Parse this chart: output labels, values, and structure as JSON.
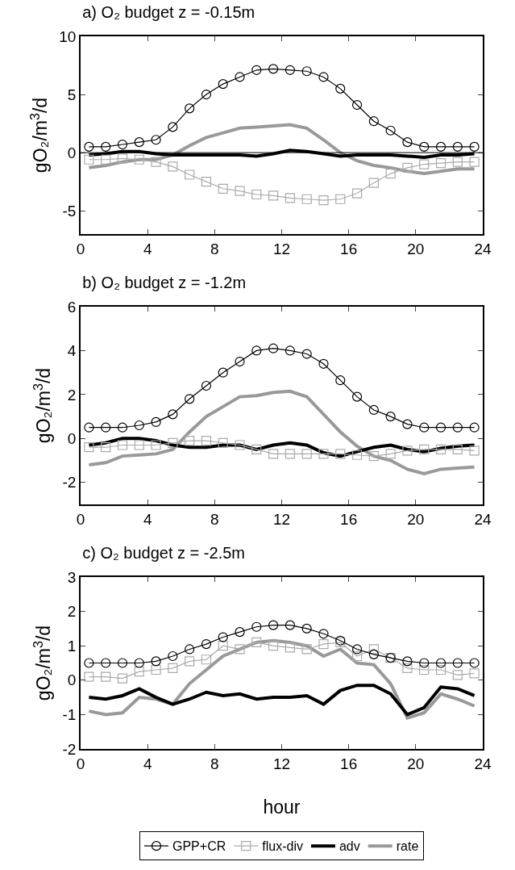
{
  "chart_data": [
    {
      "type": "line",
      "title": "a) O₂ budget z = -0.15m",
      "ylabel": "gO₂/m$^{3}$/d",
      "x": [
        0.5,
        1.5,
        2.5,
        3.5,
        4.5,
        5.5,
        6.5,
        7.5,
        8.5,
        9.5,
        10.5,
        11.5,
        12.5,
        13.5,
        14.5,
        15.5,
        16.5,
        17.5,
        18.5,
        19.5,
        20.5,
        21.5,
        22.5,
        23.5
      ],
      "xlim": [
        0,
        24
      ],
      "xticks": [
        0,
        4,
        8,
        12,
        16,
        20,
        24
      ],
      "ylim": [
        -7,
        10
      ],
      "yticks": [
        -5,
        0,
        5,
        10
      ],
      "grid": false,
      "legend": false,
      "ref_lines": [
        {
          "axis": "y",
          "value": 0,
          "color": "#000000"
        }
      ],
      "series": [
        {
          "color": "#000000",
          "marker": "circle",
          "values": [
            0.5,
            0.5,
            0.7,
            0.9,
            1.1,
            2.2,
            3.8,
            5.0,
            5.9,
            6.5,
            7.1,
            7.2,
            7.1,
            7.0,
            6.5,
            5.5,
            4.1,
            2.7,
            1.9,
            0.9,
            0.5,
            0.5,
            0.5,
            0.5
          ]
        },
        {
          "color": "#aaaaaa",
          "marker": "square",
          "values": [
            -0.6,
            -0.6,
            -0.5,
            -0.6,
            -0.8,
            -1.2,
            -1.9,
            -2.5,
            -3.1,
            -3.3,
            -3.6,
            -3.7,
            -3.9,
            -4.0,
            -4.1,
            -4.0,
            -3.5,
            -2.6,
            -1.8,
            -1.3,
            -1.0,
            -0.9,
            -0.8,
            -0.8
          ]
        },
        {
          "color": "#000000",
          "marker": "none",
          "values": [
            -0.2,
            -0.1,
            0.1,
            0.1,
            -0.1,
            -0.2,
            -0.2,
            -0.2,
            -0.2,
            -0.2,
            -0.3,
            -0.1,
            0.2,
            0.1,
            -0.1,
            -0.3,
            -0.2,
            -0.2,
            -0.2,
            -0.3,
            -0.4,
            -0.2,
            -0.2,
            -0.1
          ]
        },
        {
          "color": "#999999",
          "marker": "none",
          "values": [
            -1.3,
            -1.1,
            -0.8,
            -0.6,
            -0.6,
            -0.2,
            0.6,
            1.3,
            1.7,
            2.1,
            2.2,
            2.3,
            2.4,
            2.1,
            1.1,
            0.0,
            -0.7,
            -1.1,
            -1.3,
            -1.6,
            -1.8,
            -1.6,
            -1.4,
            -1.4
          ]
        }
      ]
    },
    {
      "type": "line",
      "title": "b) O₂ budget z = -1.2m",
      "ylabel": "gO₂/m$^{3}$/d",
      "x": [
        0.5,
        1.5,
        2.5,
        3.5,
        4.5,
        5.5,
        6.5,
        7.5,
        8.5,
        9.5,
        10.5,
        11.5,
        12.5,
        13.5,
        14.5,
        15.5,
        16.5,
        17.5,
        18.5,
        19.5,
        20.5,
        21.5,
        22.5,
        23.5
      ],
      "xlim": [
        0,
        24
      ],
      "xticks": [
        0,
        4,
        8,
        12,
        16,
        20,
        24
      ],
      "ylim": [
        -3,
        6
      ],
      "yticks": [
        -2,
        0,
        2,
        4,
        6
      ],
      "grid": false,
      "legend": false,
      "series": [
        {
          "color": "#000000",
          "marker": "circle",
          "values": [
            0.5,
            0.5,
            0.5,
            0.6,
            0.75,
            1.1,
            1.8,
            2.4,
            3.0,
            3.5,
            4.0,
            4.1,
            4.0,
            3.85,
            3.4,
            2.65,
            1.9,
            1.3,
            1.0,
            0.65,
            0.5,
            0.5,
            0.5,
            0.5
          ]
        },
        {
          "color": "#aaaaaa",
          "marker": "square",
          "values": [
            -0.4,
            -0.4,
            -0.3,
            -0.3,
            -0.3,
            -0.2,
            -0.1,
            -0.1,
            -0.2,
            -0.3,
            -0.5,
            -0.7,
            -0.7,
            -0.7,
            -0.7,
            -0.7,
            -0.75,
            -0.8,
            -0.7,
            -0.55,
            -0.5,
            -0.5,
            -0.5,
            -0.55
          ]
        },
        {
          "color": "#000000",
          "marker": "none",
          "values": [
            -0.3,
            -0.2,
            0.0,
            0.0,
            -0.1,
            -0.3,
            -0.4,
            -0.4,
            -0.3,
            -0.3,
            -0.5,
            -0.3,
            -0.2,
            -0.3,
            -0.65,
            -0.8,
            -0.6,
            -0.4,
            -0.3,
            -0.5,
            -0.6,
            -0.45,
            -0.35,
            -0.3
          ]
        },
        {
          "color": "#999999",
          "marker": "none",
          "values": [
            -1.2,
            -1.1,
            -0.8,
            -0.75,
            -0.7,
            -0.5,
            0.3,
            1.0,
            1.45,
            1.9,
            1.95,
            2.1,
            2.15,
            1.9,
            1.1,
            0.3,
            -0.35,
            -0.8,
            -1.0,
            -1.4,
            -1.6,
            -1.4,
            -1.35,
            -1.3
          ]
        }
      ]
    },
    {
      "type": "line",
      "title": "c) O₂ budget z = -2.5m",
      "ylabel": "gO₂/m$^{3}$/d",
      "xlabel": "hour",
      "x": [
        0.5,
        1.5,
        2.5,
        3.5,
        4.5,
        5.5,
        6.5,
        7.5,
        8.5,
        9.5,
        10.5,
        11.5,
        12.5,
        13.5,
        14.5,
        15.5,
        16.5,
        17.5,
        18.5,
        19.5,
        20.5,
        21.5,
        22.5,
        23.5
      ],
      "xlim": [
        0,
        24
      ],
      "xticks": [
        0,
        4,
        8,
        12,
        16,
        20,
        24
      ],
      "ylim": [
        -2,
        3
      ],
      "yticks": [
        -2,
        -1,
        0,
        1,
        2,
        3
      ],
      "grid": false,
      "legend": "bottom",
      "series": [
        {
          "name": "GPP+CR",
          "color": "#000000",
          "marker": "circle",
          "values": [
            0.5,
            0.5,
            0.5,
            0.5,
            0.55,
            0.7,
            0.9,
            1.05,
            1.25,
            1.4,
            1.55,
            1.6,
            1.6,
            1.5,
            1.35,
            1.15,
            0.9,
            0.75,
            0.65,
            0.55,
            0.5,
            0.5,
            0.5,
            0.5
          ]
        },
        {
          "name": "flux-div",
          "color": "#aaaaaa",
          "marker": "square",
          "values": [
            0.1,
            0.1,
            0.05,
            0.25,
            0.3,
            0.35,
            0.55,
            0.6,
            1.0,
            0.9,
            1.1,
            1.0,
            0.95,
            0.9,
            1.05,
            1.1,
            0.7,
            0.9,
            0.65,
            0.35,
            0.3,
            0.3,
            0.15,
            0.2
          ]
        },
        {
          "name": "adv",
          "color": "#000000",
          "marker": "none",
          "values": [
            -0.5,
            -0.55,
            -0.45,
            -0.25,
            -0.5,
            -0.7,
            -0.55,
            -0.35,
            -0.45,
            -0.4,
            -0.55,
            -0.5,
            -0.5,
            -0.45,
            -0.7,
            -0.3,
            -0.15,
            -0.15,
            -0.4,
            -1.0,
            -0.8,
            -0.2,
            -0.25,
            -0.45
          ]
        },
        {
          "name": "rate",
          "color": "#999999",
          "marker": "none",
          "values": [
            -0.9,
            -1.0,
            -0.95,
            -0.5,
            -0.55,
            -0.7,
            -0.1,
            0.3,
            0.7,
            0.9,
            1.1,
            1.15,
            1.1,
            1.0,
            0.7,
            0.9,
            0.5,
            0.45,
            -0.1,
            -1.1,
            -0.95,
            -0.4,
            -0.55,
            -0.75
          ]
        }
      ]
    }
  ]
}
